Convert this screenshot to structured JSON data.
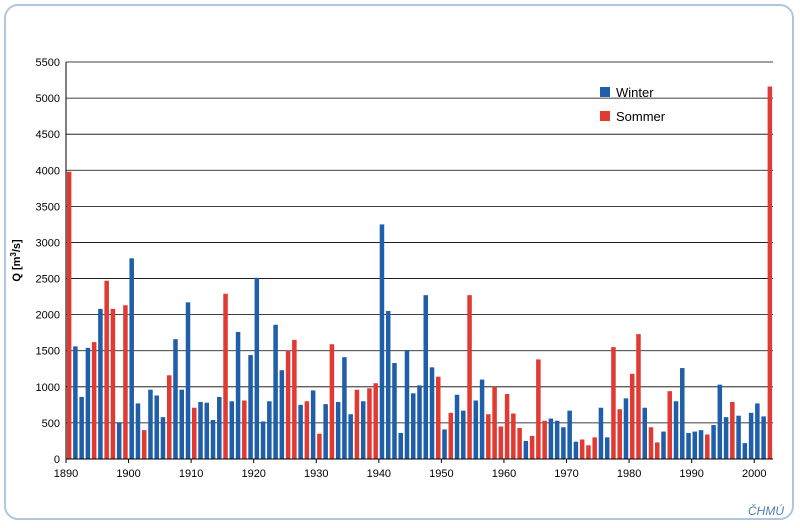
{
  "chart_data": {
    "type": "bar",
    "title": "",
    "xlabel": "",
    "ylabel": "Q [m³/s]",
    "ylabel_text": "Q [m",
    "ylabel_sup": "3",
    "ylabel_unit_end": "/s]",
    "ylim": [
      0,
      5500
    ],
    "yticks": [
      0,
      500,
      1000,
      1500,
      2000,
      2500,
      3000,
      3500,
      4000,
      4500,
      5000,
      5500
    ],
    "xlim": [
      1890,
      2003
    ],
    "xticks": [
      1890,
      1900,
      1910,
      1920,
      1930,
      1940,
      1950,
      1960,
      1970,
      1980,
      1990,
      2000
    ],
    "grid": true,
    "legend": "top-right",
    "series": [
      {
        "name": "Winter",
        "color": "#1f5ea8"
      },
      {
        "name": "Sommer",
        "color": "#e03a32"
      }
    ],
    "bars": [
      {
        "year": 1890,
        "s": 1,
        "v": 3980
      },
      {
        "year": 1891,
        "s": 0,
        "v": 1560
      },
      {
        "year": 1892,
        "s": 0,
        "v": 860
      },
      {
        "year": 1893,
        "s": 0,
        "v": 1540
      },
      {
        "year": 1894,
        "s": 1,
        "v": 1620
      },
      {
        "year": 1895,
        "s": 0,
        "v": 2080
      },
      {
        "year": 1896,
        "s": 1,
        "v": 2470
      },
      {
        "year": 1897,
        "s": 1,
        "v": 2080
      },
      {
        "year": 1898,
        "s": 0,
        "v": 510
      },
      {
        "year": 1899,
        "s": 1,
        "v": 2130
      },
      {
        "year": 1900,
        "s": 0,
        "v": 2780
      },
      {
        "year": 1901,
        "s": 0,
        "v": 770
      },
      {
        "year": 1902,
        "s": 1,
        "v": 400
      },
      {
        "year": 1903,
        "s": 0,
        "v": 960
      },
      {
        "year": 1904,
        "s": 0,
        "v": 880
      },
      {
        "year": 1905,
        "s": 0,
        "v": 580
      },
      {
        "year": 1906,
        "s": 1,
        "v": 1160
      },
      {
        "year": 1907,
        "s": 0,
        "v": 1660
      },
      {
        "year": 1908,
        "s": 0,
        "v": 960
      },
      {
        "year": 1909,
        "s": 0,
        "v": 2170
      },
      {
        "year": 1910,
        "s": 1,
        "v": 710
      },
      {
        "year": 1911,
        "s": 0,
        "v": 790
      },
      {
        "year": 1912,
        "s": 0,
        "v": 780
      },
      {
        "year": 1913,
        "s": 0,
        "v": 540
      },
      {
        "year": 1914,
        "s": 0,
        "v": 860
      },
      {
        "year": 1915,
        "s": 1,
        "v": 2290
      },
      {
        "year": 1916,
        "s": 0,
        "v": 800
      },
      {
        "year": 1917,
        "s": 0,
        "v": 1760
      },
      {
        "year": 1918,
        "s": 1,
        "v": 810
      },
      {
        "year": 1919,
        "s": 0,
        "v": 1440
      },
      {
        "year": 1920,
        "s": 0,
        "v": 2510
      },
      {
        "year": 1921,
        "s": 0,
        "v": 520
      },
      {
        "year": 1922,
        "s": 0,
        "v": 800
      },
      {
        "year": 1923,
        "s": 0,
        "v": 1860
      },
      {
        "year": 1924,
        "s": 0,
        "v": 1230
      },
      {
        "year": 1925,
        "s": 1,
        "v": 1500
      },
      {
        "year": 1926,
        "s": 1,
        "v": 1650
      },
      {
        "year": 1927,
        "s": 0,
        "v": 750
      },
      {
        "year": 1928,
        "s": 1,
        "v": 800
      },
      {
        "year": 1929,
        "s": 0,
        "v": 950
      },
      {
        "year": 1930,
        "s": 1,
        "v": 350
      },
      {
        "year": 1931,
        "s": 0,
        "v": 760
      },
      {
        "year": 1932,
        "s": 1,
        "v": 1590
      },
      {
        "year": 1933,
        "s": 0,
        "v": 790
      },
      {
        "year": 1934,
        "s": 0,
        "v": 1410
      },
      {
        "year": 1935,
        "s": 0,
        "v": 620
      },
      {
        "year": 1936,
        "s": 1,
        "v": 960
      },
      {
        "year": 1937,
        "s": 0,
        "v": 800
      },
      {
        "year": 1938,
        "s": 1,
        "v": 980
      },
      {
        "year": 1939,
        "s": 1,
        "v": 1050
      },
      {
        "year": 1940,
        "s": 0,
        "v": 3250
      },
      {
        "year": 1941,
        "s": 0,
        "v": 2050
      },
      {
        "year": 1942,
        "s": 0,
        "v": 1330
      },
      {
        "year": 1943,
        "s": 0,
        "v": 360
      },
      {
        "year": 1944,
        "s": 0,
        "v": 1510
      },
      {
        "year": 1945,
        "s": 0,
        "v": 910
      },
      {
        "year": 1946,
        "s": 0,
        "v": 1020
      },
      {
        "year": 1947,
        "s": 0,
        "v": 2270
      },
      {
        "year": 1948,
        "s": 0,
        "v": 1270
      },
      {
        "year": 1949,
        "s": 1,
        "v": 1140
      },
      {
        "year": 1950,
        "s": 0,
        "v": 410
      },
      {
        "year": 1951,
        "s": 1,
        "v": 640
      },
      {
        "year": 1952,
        "s": 0,
        "v": 890
      },
      {
        "year": 1953,
        "s": 0,
        "v": 670
      },
      {
        "year": 1954,
        "s": 1,
        "v": 2270
      },
      {
        "year": 1955,
        "s": 0,
        "v": 810
      },
      {
        "year": 1956,
        "s": 0,
        "v": 1100
      },
      {
        "year": 1957,
        "s": 1,
        "v": 620
      },
      {
        "year": 1958,
        "s": 1,
        "v": 1000
      },
      {
        "year": 1959,
        "s": 1,
        "v": 450
      },
      {
        "year": 1960,
        "s": 1,
        "v": 900
      },
      {
        "year": 1961,
        "s": 1,
        "v": 630
      },
      {
        "year": 1962,
        "s": 1,
        "v": 430
      },
      {
        "year": 1963,
        "s": 0,
        "v": 250
      },
      {
        "year": 1964,
        "s": 1,
        "v": 320
      },
      {
        "year": 1965,
        "s": 1,
        "v": 1380
      },
      {
        "year": 1966,
        "s": 1,
        "v": 530
      },
      {
        "year": 1967,
        "s": 0,
        "v": 560
      },
      {
        "year": 1968,
        "s": 0,
        "v": 530
      },
      {
        "year": 1969,
        "s": 0,
        "v": 440
      },
      {
        "year": 1970,
        "s": 0,
        "v": 670
      },
      {
        "year": 1971,
        "s": 0,
        "v": 240
      },
      {
        "year": 1972,
        "s": 1,
        "v": 270
      },
      {
        "year": 1973,
        "s": 1,
        "v": 190
      },
      {
        "year": 1974,
        "s": 1,
        "v": 300
      },
      {
        "year": 1975,
        "s": 0,
        "v": 710
      },
      {
        "year": 1976,
        "s": 0,
        "v": 300
      },
      {
        "year": 1977,
        "s": 1,
        "v": 1550
      },
      {
        "year": 1978,
        "s": 1,
        "v": 690
      },
      {
        "year": 1979,
        "s": 0,
        "v": 840
      },
      {
        "year": 1980,
        "s": 1,
        "v": 1180
      },
      {
        "year": 1981,
        "s": 1,
        "v": 1730
      },
      {
        "year": 1982,
        "s": 0,
        "v": 710
      },
      {
        "year": 1983,
        "s": 1,
        "v": 440
      },
      {
        "year": 1984,
        "s": 1,
        "v": 230
      },
      {
        "year": 1985,
        "s": 0,
        "v": 380
      },
      {
        "year": 1986,
        "s": 1,
        "v": 940
      },
      {
        "year": 1987,
        "s": 0,
        "v": 800
      },
      {
        "year": 1988,
        "s": 0,
        "v": 1260
      },
      {
        "year": 1989,
        "s": 0,
        "v": 360
      },
      {
        "year": 1990,
        "s": 0,
        "v": 380
      },
      {
        "year": 1991,
        "s": 0,
        "v": 400
      },
      {
        "year": 1992,
        "s": 1,
        "v": 340
      },
      {
        "year": 1993,
        "s": 0,
        "v": 470
      },
      {
        "year": 1994,
        "s": 0,
        "v": 1030
      },
      {
        "year": 1995,
        "s": 0,
        "v": 580
      },
      {
        "year": 1996,
        "s": 1,
        "v": 790
      },
      {
        "year": 1997,
        "s": 0,
        "v": 600
      },
      {
        "year": 1998,
        "s": 0,
        "v": 220
      },
      {
        "year": 1999,
        "s": 0,
        "v": 640
      },
      {
        "year": 2000,
        "s": 0,
        "v": 770
      },
      {
        "year": 2001,
        "s": 0,
        "v": 590
      },
      {
        "year": 2002,
        "s": 1,
        "v": 5160
      }
    ]
  },
  "credit": "ČHMÚ"
}
